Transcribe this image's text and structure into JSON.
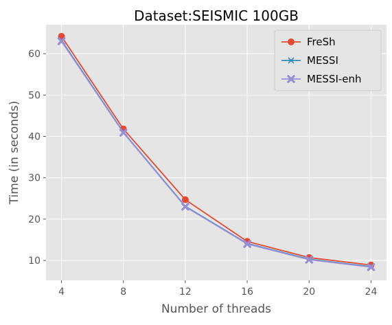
{
  "chart_data": {
    "type": "line",
    "title": "Dataset:SEISMIC 100GB",
    "xlabel": "Number of threads",
    "ylabel": "Time (in seconds)",
    "x": [
      4,
      8,
      12,
      16,
      20,
      24
    ],
    "xticks": [
      4,
      8,
      12,
      16,
      20,
      24
    ],
    "yticks": [
      10,
      20,
      30,
      40,
      50,
      60
    ],
    "xlim": [
      3,
      25
    ],
    "ylim": [
      5.2,
      67
    ],
    "grid": true,
    "legend_position": "top-right",
    "series": [
      {
        "name": "FreSh",
        "marker": "circle",
        "color": "#e24a33",
        "values": [
          64.2,
          41.8,
          24.7,
          14.6,
          10.7,
          8.9
        ]
      },
      {
        "name": "MESSI",
        "marker": "x",
        "color": "#348abd",
        "values": [
          63.2,
          41.0,
          23.1,
          14.1,
          10.3,
          8.5
        ]
      },
      {
        "name": "MESSI-enh",
        "marker": "X",
        "color": "#988ed5",
        "values": [
          63.0,
          40.9,
          23.0,
          14.0,
          10.2,
          8.4
        ]
      }
    ]
  }
}
